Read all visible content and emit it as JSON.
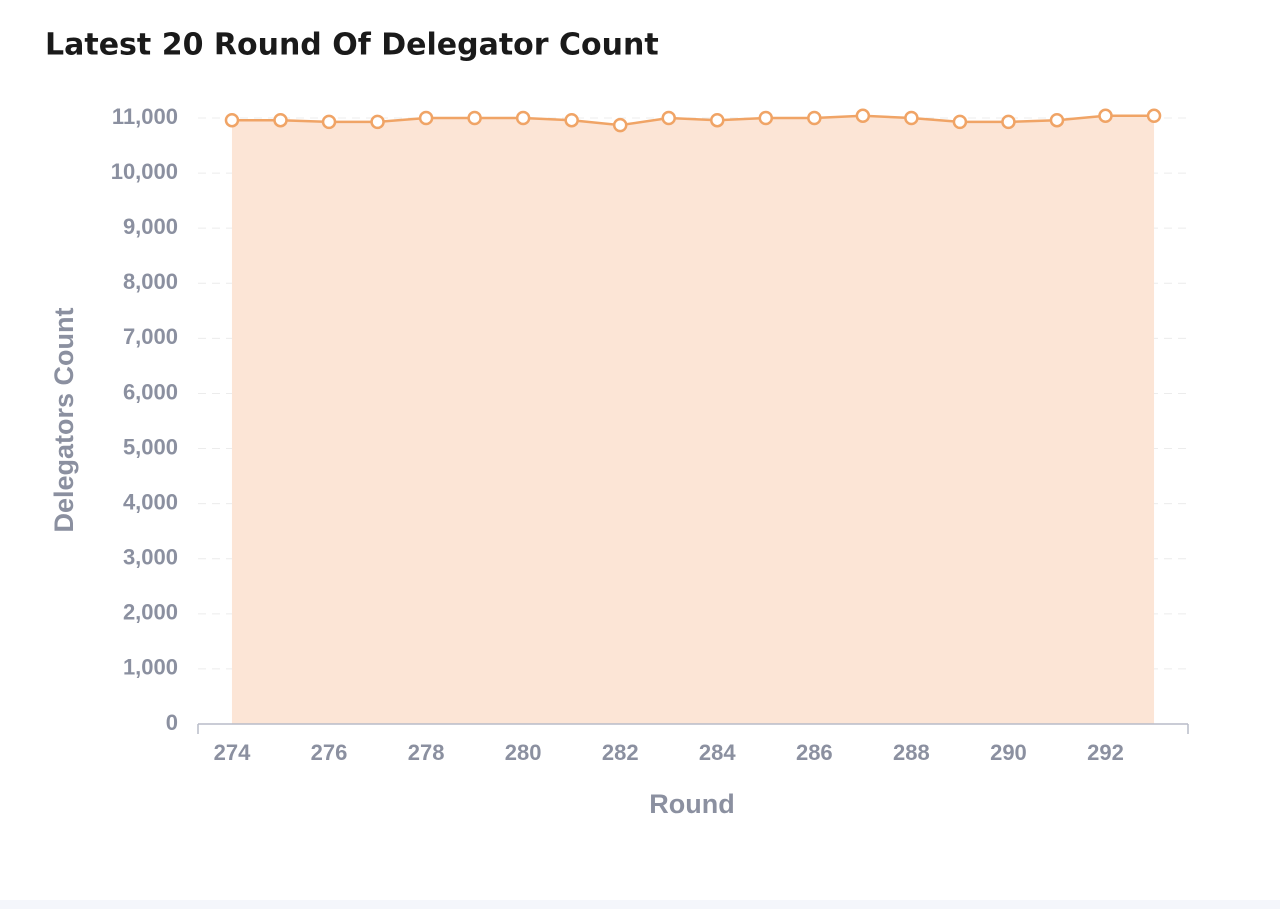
{
  "chart_data": {
    "type": "area",
    "title": "Latest 20 Round Of Delegator Count",
    "x_label": "Round",
    "y_label": "Delegators Count",
    "x": [
      274,
      275,
      276,
      277,
      278,
      279,
      280,
      281,
      282,
      283,
      284,
      285,
      286,
      287,
      288,
      289,
      290,
      291,
      292,
      293
    ],
    "series": [
      {
        "name": "Delegators Count",
        "color": "#f0a466",
        "fill": "#fce5d6",
        "values": [
          10960,
          10960,
          10930,
          10930,
          11000,
          11000,
          11000,
          10960,
          10870,
          11000,
          10960,
          11000,
          11000,
          11040,
          11000,
          10930,
          10930,
          10960,
          11040,
          11040
        ]
      }
    ],
    "xlim": [
      273.3,
      293.7
    ],
    "xticks": [
      274,
      276,
      278,
      280,
      282,
      284,
      286,
      288,
      290,
      292
    ],
    "ylim": [
      0,
      11000
    ],
    "yticks": [
      0,
      {
        "value": 1000,
        "label": "1,000"
      },
      {
        "value": 2000,
        "label": "2,000"
      },
      {
        "value": 3000,
        "label": "3,000"
      },
      {
        "value": 4000,
        "label": "4,000"
      },
      {
        "value": 5000,
        "label": "5,000"
      },
      {
        "value": 6000,
        "label": "6,000"
      },
      {
        "value": 7000,
        "label": "7,000"
      },
      {
        "value": 8000,
        "label": "8,000"
      },
      {
        "value": 9000,
        "label": "9,000"
      },
      {
        "value": 10000,
        "label": "10,000"
      },
      {
        "value": 11000,
        "label": "11,000"
      }
    ],
    "grid": true
  }
}
